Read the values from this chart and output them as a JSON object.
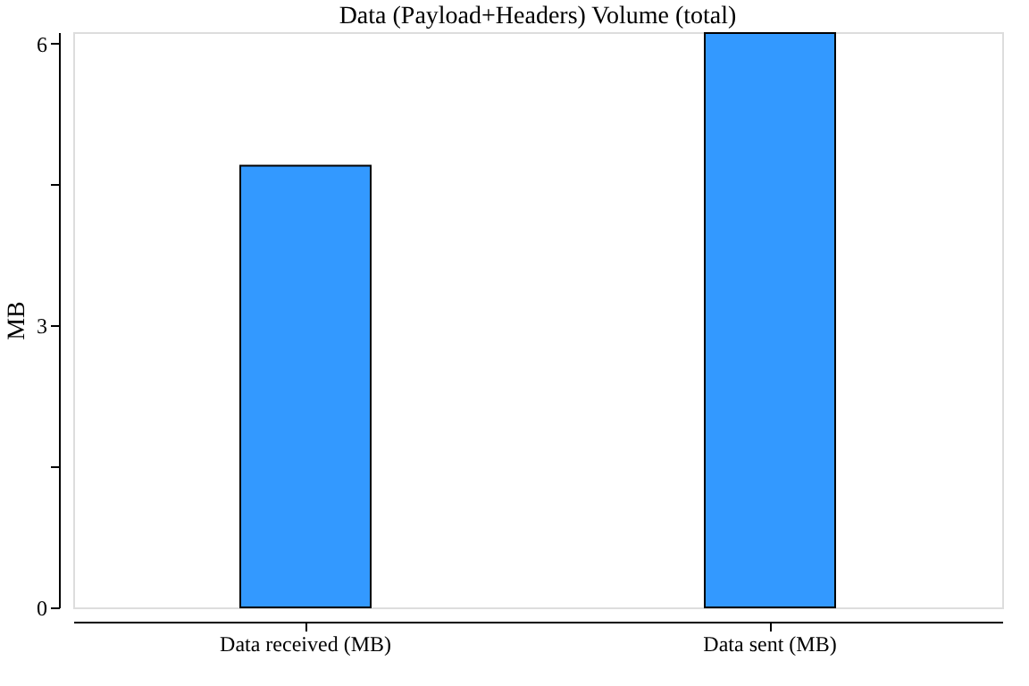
{
  "chart_data": {
    "type": "bar",
    "title": "Data (Payload+Headers) Volume (total)",
    "ylabel": "MB",
    "categories": [
      "Data received (MB)",
      "Data sent (MB)"
    ],
    "values": [
      4.7,
      6.11
    ],
    "color": "#3399ff",
    "ylim": [
      0,
      6.12
    ],
    "yticks": [
      0,
      {
        "value": 1.5,
        "label": null
      },
      3,
      {
        "value": 4.5,
        "label": null
      },
      6
    ],
    "grid": false
  }
}
